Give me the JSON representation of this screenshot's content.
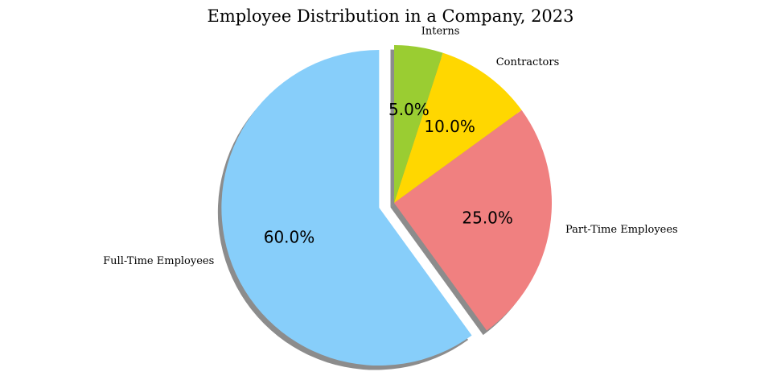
{
  "chart_data": {
    "type": "pie",
    "title": "Employee Distribution in a Company, 2023",
    "slices": [
      {
        "label": "Full-Time Employees",
        "value": 60.0,
        "percent_label": "60.0%",
        "color": "#87CEFA",
        "exploded": true
      },
      {
        "label": "Part-Time Employees",
        "value": 25.0,
        "percent_label": "25.0%",
        "color": "#F08080",
        "exploded": false
      },
      {
        "label": "Contractors",
        "value": 10.0,
        "percent_label": "10.0%",
        "color": "#FFD700",
        "exploded": false
      },
      {
        "label": "Interns",
        "value": 5.0,
        "percent_label": "5.0%",
        "color": "#9ACD32",
        "exploded": false
      }
    ],
    "start_angle_deg": 90,
    "direction": "counterclockwise",
    "shadow": true,
    "legend": "none"
  }
}
